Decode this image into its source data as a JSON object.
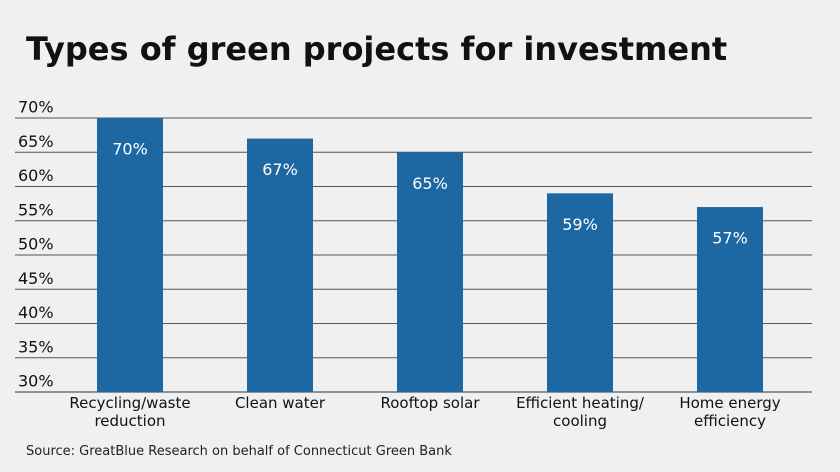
{
  "chart_data": {
    "type": "bar",
    "title": "Types of green projects for investment",
    "categories": [
      "Recycling/waste\nreduction",
      "Clean water",
      "Rooftop solar",
      "Efficient heating/\ncooling",
      "Home energy\nefficiency"
    ],
    "values": [
      70,
      67,
      65,
      59,
      57
    ],
    "value_labels": [
      "70%",
      "67%",
      "65%",
      "59%",
      "57%"
    ],
    "color": "#1d67a3",
    "ylim": [
      30,
      70
    ],
    "yticks": [
      {
        "value": 30,
        "label": "30%"
      },
      {
        "value": 35,
        "label": "35%"
      },
      {
        "value": 40,
        "label": "40%"
      },
      {
        "value": 45,
        "label": "45%"
      },
      {
        "value": 50,
        "label": "50%"
      },
      {
        "value": 55,
        "label": "55%"
      },
      {
        "value": 60,
        "label": "60%"
      },
      {
        "value": 65,
        "label": "65%"
      },
      {
        "value": 70,
        "label": "70%"
      }
    ],
    "grid": true,
    "source": "Source: GreatBlue Research on behalf of Connecticut Green Bank"
  }
}
